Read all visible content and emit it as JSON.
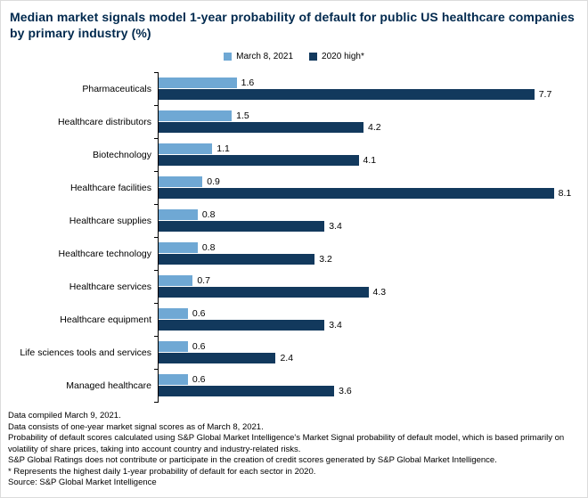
{
  "title": "Median market signals model 1-year probability of default for public US healthcare companies by primary industry (%)",
  "colors": {
    "title": "#00294E",
    "series_current": "#6FA8D4",
    "series_high": "#12395D",
    "axis": "#000000"
  },
  "chart_data": {
    "type": "bar",
    "orientation": "horizontal",
    "title": "Median market signals model 1-year probability of default for public US healthcare companies by primary industry (%)",
    "categories": [
      "Pharmaceuticals",
      "Healthcare distributors",
      "Biotechnology",
      "Healthcare facilities",
      "Healthcare supplies",
      "Healthcare technology",
      "Healthcare services",
      "Healthcare equipment",
      "Life sciences tools and services",
      "Managed healthcare"
    ],
    "series": [
      {
        "name": "March 8, 2021",
        "color": "#6FA8D4",
        "values": [
          1.6,
          1.5,
          1.1,
          0.9,
          0.8,
          0.8,
          0.7,
          0.6,
          0.6,
          0.6
        ]
      },
      {
        "name": "2020 high*",
        "color": "#12395D",
        "values": [
          7.7,
          4.2,
          4.1,
          8.1,
          3.4,
          3.2,
          4.3,
          3.4,
          2.4,
          3.6
        ]
      }
    ],
    "xlim": [
      0,
      8.6
    ],
    "value_labels": true,
    "grid": false,
    "legend_position": "top"
  },
  "footnotes": [
    "Data compiled March 9, 2021.",
    "Data consists of one-year market signal scores as of March 8, 2021.",
    "Probability of default scores calculated using S&P Global Market Intelligence's Market Signal probability of default model, which is based primarily on volatility of share prices, taking into account country and industry-related risks.",
    "S&P Global Ratings does not contribute or participate in the creation of credit scores generated by S&P Global Market Intelligence.",
    "* Represents the highest daily 1-year probability of default for each sector in 2020.",
    "Source: S&P Global Market Intelligence"
  ]
}
